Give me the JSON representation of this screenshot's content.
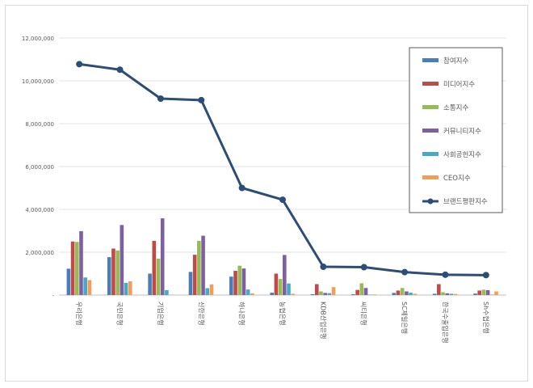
{
  "chart_data": {
    "type": "bar",
    "title": "",
    "xlabel": "",
    "ylabel": "",
    "ylim": [
      0,
      12000000
    ],
    "y_ticks": [
      "-",
      "2,000,000",
      "4,000,000",
      "6,000,000",
      "8,000,000",
      "10,000,000",
      "12,000,000"
    ],
    "grid": true,
    "legend_position": "top-right",
    "categories": [
      "우리은행",
      "국민은행",
      "기업은행",
      "신한은행",
      "하나은행",
      "농협은행",
      "KDB산업은행",
      "씨티은행",
      "SC제일은행",
      "한국수출입은행",
      "Sh수협은행"
    ],
    "series": [
      {
        "name": "참여지수",
        "color": "#4a7ebb",
        "values": [
          1230000,
          1770000,
          1000000,
          1080000,
          860000,
          110000,
          40000,
          40000,
          100000,
          60000,
          70000
        ]
      },
      {
        "name": "미디어지수",
        "color": "#be4b48",
        "values": [
          2500000,
          2170000,
          2530000,
          1880000,
          1130000,
          1000000,
          510000,
          240000,
          210000,
          510000,
          210000
        ]
      },
      {
        "name": "소통지수",
        "color": "#98b954",
        "values": [
          2480000,
          2080000,
          1700000,
          2530000,
          1370000,
          750000,
          170000,
          550000,
          330000,
          130000,
          250000
        ]
      },
      {
        "name": "커뮤니티지수",
        "color": "#7d60a0",
        "values": [
          2980000,
          3270000,
          3580000,
          2770000,
          1240000,
          1870000,
          100000,
          330000,
          170000,
          80000,
          230000
        ]
      },
      {
        "name": "사회공헌지수",
        "color": "#46aac5",
        "values": [
          820000,
          570000,
          230000,
          320000,
          260000,
          540000,
          90000,
          20000,
          110000,
          60000,
          20000
        ]
      },
      {
        "name": "CEO지수",
        "color": "#f59d56",
        "values": [
          700000,
          640000,
          20000,
          500000,
          80000,
          60000,
          370000,
          30000,
          60000,
          50000,
          170000
        ]
      }
    ],
    "line_series": {
      "name": "브랜드평판지수",
      "color": "#2c4d75",
      "values": [
        10780000,
        10520000,
        9170000,
        9100000,
        5000000,
        4450000,
        1320000,
        1300000,
        1070000,
        950000,
        930000
      ]
    }
  }
}
